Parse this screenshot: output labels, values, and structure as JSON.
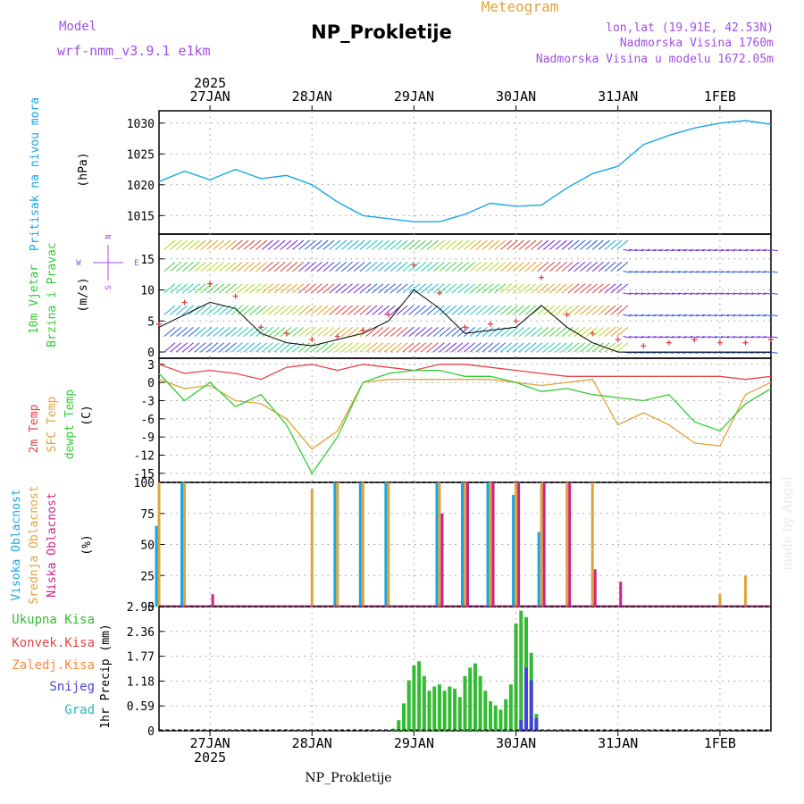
{
  "header": {
    "model_label": "Model",
    "model_value": "wrf-nmm_v3.9.1 e1km",
    "kind": "Meteogram",
    "station": "NP_Prokletije",
    "coords": "lon,lat (19.91E, 42.53N)",
    "elevation": "Nadmorska Visina 1760m",
    "model_elevation": "Nadmorska Visina u modelu 1672.05m"
  },
  "footer": {
    "station": "NP_Prokletije",
    "credit": "made by Angel"
  },
  "time_axis": {
    "year": "2025",
    "labels": [
      "27JAN",
      "28JAN",
      "29JAN",
      "30JAN",
      "31JAN",
      "1FEB"
    ],
    "start_day": 26.5,
    "end_day": 32.5
  },
  "colors": {
    "pressure": "#1aa6e6",
    "wind_speed": "#000000",
    "wind_gust": "#e03c3c",
    "t2m": "#e84343",
    "tsfc": "#e0a43a",
    "tdew": "#33cc33",
    "cloud_high": "#1aa6e6",
    "cloud_mid": "#e0a43a",
    "cloud_low": "#cc2288",
    "precip_total": "#33bb33",
    "precip_conv": "#e84343",
    "precip_frz": "#ff8833",
    "precip_snow": "#4444dd",
    "precip_grad": "#22bbbb"
  },
  "panels": {
    "pressure": {
      "label": "Pritisak na nivou mora",
      "unit": "(hPa)",
      "ticks": [
        "1015",
        "1020",
        "1025",
        "1030"
      ]
    },
    "wind": {
      "label1": "10m Vjetar",
      "label2": "Brzina i Pravac",
      "unit": "(m/s)",
      "ticks": [
        "0",
        "5",
        "10",
        "15"
      ],
      "compass_n": "N",
      "compass_w": "W",
      "compass_e": "E",
      "compass_s": "S"
    },
    "temp": {
      "label1": "2m Temp",
      "label2": "SFC Temp",
      "label3": "dewpt Temp",
      "unit": "(C)",
      "ticks": [
        "3",
        "0",
        "-3",
        "-6",
        "-9",
        "-12",
        "-15"
      ]
    },
    "cloud": {
      "label1": "Visoka Oblacnost",
      "label2": "Srednja Oblacnost",
      "label3": "Niska Oblacnost",
      "unit": "(%)",
      "ticks": [
        "0",
        "25",
        "50",
        "75",
        "100"
      ]
    },
    "precip": {
      "unit": "1hr Precip (mm)",
      "ticks": [
        "0",
        "0.59",
        "1.18",
        "1.77",
        "2.36",
        "2.95"
      ],
      "legend": [
        "Ukupna Kisa",
        "Konvek.Kisa",
        "Zaledj.Kisa",
        "Snijeg",
        "Grad"
      ]
    }
  },
  "chart_data": [
    {
      "type": "line",
      "title": "",
      "ylabel": "Pritisak na nivou mora (hPa)",
      "ylim": [
        1012,
        1032
      ],
      "series": [
        {
          "name": "Pritisak na nivou mora",
          "x": [
            26.5,
            26.75,
            27.0,
            27.25,
            27.5,
            27.75,
            28.0,
            28.25,
            28.5,
            28.75,
            29.0,
            29.25,
            29.5,
            29.75,
            30.0,
            30.25,
            30.5,
            30.75,
            31.0,
            31.25,
            31.5,
            31.75,
            32.0,
            32.25,
            32.5
          ],
          "y": [
            1020.5,
            1022.2,
            1020.8,
            1022.5,
            1021.0,
            1021.5,
            1020.0,
            1017.2,
            1015.0,
            1014.5,
            1014.0,
            1014.0,
            1015.2,
            1017.0,
            1016.5,
            1016.7,
            1019.5,
            1021.8,
            1023.0,
            1026.5,
            1028.0,
            1029.2,
            1030.0,
            1030.4,
            1029.8
          ]
        }
      ]
    },
    {
      "type": "line",
      "title": "",
      "ylabel": "10m Vjetar Brzina i Pravac (m/s)",
      "ylim": [
        -1,
        19
      ],
      "series": [
        {
          "name": "Brzina",
          "x": [
            26.5,
            26.75,
            27.0,
            27.25,
            27.5,
            27.75,
            28.0,
            28.25,
            28.5,
            28.75,
            29.0,
            29.25,
            29.5,
            29.75,
            30.0,
            30.25,
            30.5,
            30.75,
            31.0,
            31.25,
            31.5,
            31.75,
            32.0,
            32.25,
            32.5
          ],
          "y": [
            4.0,
            6.0,
            8.0,
            7.0,
            3.0,
            1.5,
            1.0,
            2.0,
            3.0,
            5.0,
            10.0,
            7.0,
            3.0,
            3.5,
            4.0,
            7.5,
            4.0,
            1.5,
            0.0,
            0.0,
            0.0,
            0.0,
            0.0,
            0.0,
            0.0
          ]
        },
        {
          "name": "Udar",
          "x": [
            26.5,
            26.75,
            27.0,
            27.25,
            27.5,
            27.75,
            28.0,
            28.25,
            28.5,
            28.75,
            29.0,
            29.25,
            29.5,
            29.75,
            30.0,
            30.25,
            30.5,
            30.75,
            31.0,
            31.25,
            31.5,
            31.75,
            32.0,
            32.25,
            32.5
          ],
          "y": [
            4.5,
            8.0,
            11.0,
            9.0,
            4.0,
            3.0,
            2.0,
            2.5,
            3.5,
            6.0,
            14.0,
            9.5,
            4.0,
            4.5,
            5.0,
            12.0,
            6.0,
            3.0,
            2.0,
            1.0,
            1.5,
            2.0,
            1.5,
            1.5,
            2.0
          ]
        }
      ]
    },
    {
      "type": "line",
      "title": "",
      "ylabel": "Temp (C)",
      "ylim": [
        -16.5,
        4
      ],
      "series": [
        {
          "name": "2m Temp",
          "x": [
            26.5,
            26.75,
            27.0,
            27.25,
            27.5,
            27.75,
            28.0,
            28.25,
            28.5,
            28.75,
            29.0,
            29.25,
            29.5,
            29.75,
            30.0,
            30.25,
            30.5,
            30.75,
            31.0,
            31.25,
            31.5,
            31.75,
            32.0,
            32.25,
            32.5
          ],
          "y": [
            3.0,
            1.5,
            2.0,
            1.5,
            0.5,
            2.5,
            3.0,
            2.0,
            3.0,
            2.5,
            2.0,
            3.0,
            3.0,
            2.5,
            2.0,
            1.5,
            1.0,
            1.0,
            1.0,
            1.0,
            1.0,
            1.0,
            1.0,
            0.5,
            1.0
          ]
        },
        {
          "name": "SFC Temp",
          "x": [
            26.5,
            26.75,
            27.0,
            27.25,
            27.5,
            27.75,
            28.0,
            28.25,
            28.5,
            28.75,
            29.0,
            29.25,
            29.5,
            29.75,
            30.0,
            30.25,
            30.5,
            30.75,
            31.0,
            31.25,
            31.5,
            31.75,
            32.0,
            32.25,
            32.5
          ],
          "y": [
            0.5,
            -1.0,
            -0.5,
            -3.0,
            -3.5,
            -6.0,
            -11.0,
            -8.0,
            0.0,
            0.5,
            0.5,
            0.5,
            0.5,
            0.5,
            0.0,
            -0.5,
            0.0,
            0.5,
            -7.0,
            -5.0,
            -7.0,
            -10.0,
            -10.5,
            -2.0,
            0.0
          ]
        },
        {
          "name": "dewpt Temp",
          "x": [
            26.5,
            26.75,
            27.0,
            27.25,
            27.5,
            27.75,
            28.0,
            28.25,
            28.5,
            28.75,
            29.0,
            29.25,
            29.5,
            29.75,
            30.0,
            30.25,
            30.5,
            30.75,
            31.0,
            31.25,
            31.5,
            31.75,
            32.0,
            32.25,
            32.5
          ],
          "y": [
            1.5,
            -3.0,
            0.0,
            -4.0,
            -2.0,
            -7.0,
            -15.0,
            -9.0,
            0.0,
            1.5,
            2.0,
            2.0,
            1.0,
            1.0,
            0.0,
            -1.5,
            -1.0,
            -2.0,
            -2.5,
            -3.0,
            -2.0,
            -6.5,
            -8.0,
            -3.5,
            -1.0
          ]
        }
      ]
    },
    {
      "type": "bar",
      "title": "",
      "ylabel": "Oblacnost (%)",
      "ylim": [
        0,
        100
      ],
      "series": [
        {
          "name": "Visoka Oblacnost",
          "x": [
            26.5,
            26.75,
            27.0,
            27.25,
            27.5,
            27.75,
            28.0,
            28.25,
            28.5,
            28.75,
            29.0,
            29.25,
            29.5,
            29.75,
            30.0,
            30.25,
            30.5,
            30.75,
            31.0,
            31.25,
            31.5,
            31.75,
            32.0,
            32.25,
            32.5
          ],
          "y": [
            65,
            100,
            0,
            0,
            0,
            0,
            0,
            100,
            100,
            100,
            0,
            100,
            100,
            100,
            90,
            60,
            0,
            0,
            0,
            0,
            0,
            0,
            0,
            0,
            0
          ]
        },
        {
          "name": "Srednja Oblacnost",
          "x": [
            26.5,
            26.75,
            27.0,
            27.25,
            27.5,
            27.75,
            28.0,
            28.25,
            28.5,
            28.75,
            29.0,
            29.25,
            29.5,
            29.75,
            30.0,
            30.25,
            30.5,
            30.75,
            31.0,
            31.25,
            31.5,
            31.75,
            32.0,
            32.25,
            32.5
          ],
          "y": [
            100,
            100,
            0,
            0,
            0,
            0,
            95,
            100,
            100,
            100,
            0,
            100,
            100,
            100,
            100,
            100,
            100,
            100,
            0,
            0,
            0,
            0,
            10,
            25,
            0
          ]
        },
        {
          "name": "Niska Oblacnost",
          "x": [
            26.5,
            26.75,
            27.0,
            27.25,
            27.5,
            27.75,
            28.0,
            28.25,
            28.5,
            28.75,
            29.0,
            29.25,
            29.5,
            29.75,
            30.0,
            30.25,
            30.5,
            30.75,
            31.0,
            31.25,
            31.5,
            31.75,
            32.0,
            32.25,
            32.5
          ],
          "y": [
            0,
            0,
            10,
            0,
            0,
            0,
            0,
            0,
            0,
            0,
            0,
            75,
            100,
            100,
            100,
            100,
            100,
            30,
            20,
            0,
            0,
            0,
            0,
            0,
            0
          ]
        }
      ]
    },
    {
      "type": "bar",
      "title": "",
      "ylabel": "1hr Precip (mm)",
      "ylim": [
        0,
        2.95
      ],
      "x": [
        28.8,
        28.85,
        28.9,
        28.95,
        29.0,
        29.05,
        29.1,
        29.15,
        29.2,
        29.25,
        29.3,
        29.35,
        29.4,
        29.45,
        29.5,
        29.55,
        29.6,
        29.65,
        29.7,
        29.75,
        29.8,
        29.85,
        29.9,
        29.95,
        30.0,
        30.05,
        30.1,
        30.15,
        30.2
      ],
      "series": [
        {
          "name": "Ukupna Kisa",
          "y": [
            0.05,
            0.25,
            0.65,
            1.2,
            1.55,
            1.65,
            1.3,
            0.95,
            1.05,
            1.1,
            0.95,
            1.05,
            1.0,
            0.8,
            1.3,
            1.5,
            1.6,
            1.3,
            0.95,
            0.7,
            0.6,
            0.5,
            0.75,
            1.1,
            2.55,
            2.85,
            2.7,
            1.85,
            0.4
          ]
        },
        {
          "name": "Konvek.Kisa",
          "y": [
            0,
            0,
            0,
            0,
            0,
            0,
            0,
            0,
            0,
            0,
            0,
            0,
            0,
            0,
            0,
            0,
            0,
            0,
            0,
            0,
            0,
            0,
            0,
            0,
            0,
            0,
            0,
            0,
            0
          ]
        },
        {
          "name": "Zaledj.Kisa",
          "y": [
            0,
            0,
            0,
            0,
            0,
            0,
            0,
            0,
            0,
            0,
            0,
            0,
            0,
            0,
            0,
            0,
            0,
            0,
            0,
            0,
            0,
            0,
            0,
            0,
            0,
            0,
            0,
            0,
            0
          ]
        },
        {
          "name": "Snijeg",
          "y": [
            0,
            0,
            0,
            0,
            0,
            0,
            0,
            0,
            0,
            0,
            0,
            0,
            0,
            0,
            0,
            0,
            0,
            0,
            0,
            0,
            0,
            0,
            0,
            0,
            0,
            0.25,
            1.5,
            1.2,
            0.3
          ]
        },
        {
          "name": "Grad",
          "y": [
            0,
            0,
            0,
            0,
            0,
            0,
            0,
            0,
            0,
            0,
            0,
            0,
            0,
            0,
            0,
            0,
            0,
            0,
            0,
            0,
            0,
            0,
            0,
            0,
            0,
            0,
            0,
            0,
            0
          ]
        }
      ]
    }
  ]
}
